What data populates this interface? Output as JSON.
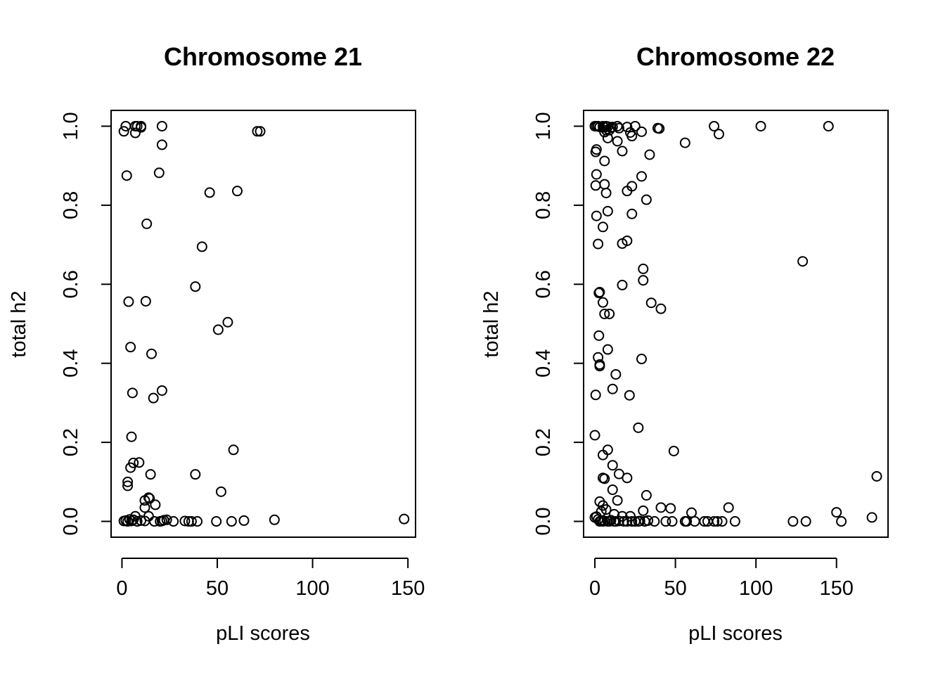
{
  "chart_data": [
    {
      "type": "scatter",
      "title": "Chromosome 21",
      "xlabel": "pLI scores",
      "ylabel": "total h2",
      "xticks": [
        0,
        50,
        100,
        150
      ],
      "xtick_labels": [
        "0",
        "50",
        "100",
        "150"
      ],
      "yticks": [
        0.0,
        0.2,
        0.4,
        0.6,
        0.8,
        1.0
      ],
      "ytick_labels": [
        "0.0",
        "0.2",
        "0.4",
        "0.6",
        "0.8",
        "1.0"
      ],
      "xlim": [
        -5.7,
        154
      ],
      "ylim": [
        -0.04,
        1.04
      ],
      "grid": false,
      "points": [
        [
          1,
          0.987
        ],
        [
          2,
          1.0
        ],
        [
          7,
          1.0
        ],
        [
          8,
          1.0
        ],
        [
          10,
          0.997
        ],
        [
          10,
          1.0
        ],
        [
          7,
          0.983
        ],
        [
          21,
          1.0
        ],
        [
          71,
          0.987
        ],
        [
          72.5,
          0.987
        ],
        [
          21,
          0.953
        ],
        [
          2.5,
          0.875
        ],
        [
          19.5,
          0.882
        ],
        [
          46,
          0.832
        ],
        [
          60.5,
          0.836
        ],
        [
          13,
          0.753
        ],
        [
          42,
          0.695
        ],
        [
          38.5,
          0.594
        ],
        [
          3.5,
          0.556
        ],
        [
          12.5,
          0.557
        ],
        [
          55.5,
          0.504
        ],
        [
          50.5,
          0.485
        ],
        [
          4.5,
          0.441
        ],
        [
          15.5,
          0.424
        ],
        [
          5.5,
          0.325
        ],
        [
          21,
          0.331
        ],
        [
          16.5,
          0.312
        ],
        [
          5,
          0.214
        ],
        [
          58.5,
          0.181
        ],
        [
          6,
          0.148
        ],
        [
          9,
          0.149
        ],
        [
          4.5,
          0.136
        ],
        [
          15,
          0.119
        ],
        [
          38.5,
          0.119
        ],
        [
          3,
          0.1
        ],
        [
          3,
          0.09
        ],
        [
          52,
          0.075
        ],
        [
          12,
          0.053
        ],
        [
          14,
          0.06
        ],
        [
          14.5,
          0.058
        ],
        [
          12,
          0.035
        ],
        [
          17.5,
          0.042
        ],
        [
          7,
          0.013
        ],
        [
          14,
          0.013
        ],
        [
          1,
          0.001
        ],
        [
          2,
          0.002
        ],
        [
          3,
          0.0
        ],
        [
          4,
          0.005
        ],
        [
          5,
          0.001
        ],
        [
          6,
          0.004
        ],
        [
          8,
          0.0
        ],
        [
          10,
          0.002
        ],
        [
          12,
          0.001
        ],
        [
          17,
          0.0
        ],
        [
          20,
          0.0
        ],
        [
          21,
          0.001
        ],
        [
          22,
          0.003
        ],
        [
          23.5,
          0.004
        ],
        [
          27,
          0.0
        ],
        [
          33,
          0.001
        ],
        [
          35,
          0.0
        ],
        [
          36.5,
          0.0
        ],
        [
          39.5,
          0.0
        ],
        [
          49.5,
          0.0
        ],
        [
          57.5,
          0.0
        ],
        [
          64,
          0.002
        ],
        [
          80,
          0.004
        ],
        [
          148,
          0.006
        ]
      ]
    },
    {
      "type": "scatter",
      "title": "Chromosome 22",
      "xlabel": "pLI scores",
      "ylabel": "total h2",
      "xticks": [
        0,
        50,
        100,
        150
      ],
      "xtick_labels": [
        "0",
        "50",
        "100",
        "150"
      ],
      "yticks": [
        0.0,
        0.2,
        0.4,
        0.6,
        0.8,
        1.0
      ],
      "ytick_labels": [
        "0.0",
        "0.2",
        "0.4",
        "0.6",
        "0.8",
        "1.0"
      ],
      "xlim": [
        -7,
        182
      ],
      "ylim": [
        -0.04,
        1.04
      ],
      "grid": false,
      "points": [
        [
          0,
          1.0
        ],
        [
          1,
          1.0
        ],
        [
          2,
          1.0
        ],
        [
          3,
          0.998
        ],
        [
          5,
          1.0
        ],
        [
          6,
          0.997
        ],
        [
          7,
          1.0
        ],
        [
          8,
          0.999
        ],
        [
          7,
          0.99
        ],
        [
          6,
          0.985
        ],
        [
          9,
          0.99
        ],
        [
          10,
          0.996
        ],
        [
          11,
          0.998
        ],
        [
          14,
          1.0
        ],
        [
          15,
          0.995
        ],
        [
          20,
          0.998
        ],
        [
          22,
          0.984
        ],
        [
          23,
          0.975
        ],
        [
          25,
          1.0
        ],
        [
          29,
          0.986
        ],
        [
          39,
          0.995
        ],
        [
          40,
          0.994
        ],
        [
          74,
          1.0
        ],
        [
          77,
          0.98
        ],
        [
          103,
          1.0
        ],
        [
          145,
          1.0
        ],
        [
          8,
          0.97
        ],
        [
          14,
          0.962
        ],
        [
          56,
          0.958
        ],
        [
          0.5,
          0.935
        ],
        [
          1,
          0.941
        ],
        [
          17,
          0.937
        ],
        [
          34,
          0.928
        ],
        [
          6,
          0.912
        ],
        [
          1,
          0.878
        ],
        [
          29,
          0.873
        ],
        [
          0.5,
          0.85
        ],
        [
          6,
          0.853
        ],
        [
          23,
          0.848
        ],
        [
          7,
          0.831
        ],
        [
          20,
          0.836
        ],
        [
          32,
          0.814
        ],
        [
          8,
          0.785
        ],
        [
          1,
          0.773
        ],
        [
          23,
          0.778
        ],
        [
          5,
          0.745
        ],
        [
          2,
          0.702
        ],
        [
          17,
          0.703
        ],
        [
          20,
          0.71
        ],
        [
          129,
          0.658
        ],
        [
          30,
          0.639
        ],
        [
          30,
          0.61
        ],
        [
          17,
          0.598
        ],
        [
          3,
          0.58
        ],
        [
          2.5,
          0.578
        ],
        [
          35,
          0.553
        ],
        [
          5,
          0.554
        ],
        [
          41,
          0.538
        ],
        [
          6,
          0.525
        ],
        [
          9,
          0.525
        ],
        [
          2.5,
          0.47
        ],
        [
          8,
          0.435
        ],
        [
          2,
          0.415
        ],
        [
          29,
          0.411
        ],
        [
          3,
          0.393
        ],
        [
          3,
          0.397
        ],
        [
          13,
          0.372
        ],
        [
          11,
          0.335
        ],
        [
          0.5,
          0.32
        ],
        [
          21.5,
          0.319
        ],
        [
          27,
          0.237
        ],
        [
          0,
          0.218
        ],
        [
          8,
          0.181
        ],
        [
          49,
          0.178
        ],
        [
          5,
          0.168
        ],
        [
          11,
          0.142
        ],
        [
          15,
          0.12
        ],
        [
          5,
          0.11
        ],
        [
          6,
          0.108
        ],
        [
          20,
          0.11
        ],
        [
          175,
          0.114
        ],
        [
          11,
          0.08
        ],
        [
          32,
          0.066
        ],
        [
          3,
          0.05
        ],
        [
          14,
          0.053
        ],
        [
          5,
          0.04
        ],
        [
          7,
          0.03
        ],
        [
          41,
          0.035
        ],
        [
          47,
          0.033
        ],
        [
          83,
          0.035
        ],
        [
          30,
          0.027
        ],
        [
          4,
          0.025
        ],
        [
          60,
          0.022
        ],
        [
          150,
          0.023
        ],
        [
          12,
          0.018
        ],
        [
          17,
          0.013
        ],
        [
          22,
          0.013
        ],
        [
          172,
          0.01
        ],
        [
          0,
          0.01
        ],
        [
          1,
          0.012
        ],
        [
          2,
          0.005
        ],
        [
          3,
          0.0
        ],
        [
          4,
          0.002
        ],
        [
          5,
          0.0
        ],
        [
          6,
          0.001
        ],
        [
          8,
          0.0
        ],
        [
          9,
          0.0
        ],
        [
          10,
          0.003
        ],
        [
          12,
          0.0
        ],
        [
          13,
          0.0
        ],
        [
          15,
          0.001
        ],
        [
          18,
          0.0
        ],
        [
          20,
          0.0
        ],
        [
          23,
          0.0
        ],
        [
          25,
          0.0
        ],
        [
          27,
          0.0
        ],
        [
          28,
          0.001
        ],
        [
          31,
          0.0
        ],
        [
          33,
          0.002
        ],
        [
          37,
          0.0
        ],
        [
          44,
          0.0
        ],
        [
          48,
          0.0
        ],
        [
          56,
          0.0
        ],
        [
          57,
          0.0
        ],
        [
          62,
          0.0
        ],
        [
          68,
          0.0
        ],
        [
          70,
          0.0
        ],
        [
          74,
          0.0
        ],
        [
          76,
          0.0
        ],
        [
          79,
          0.0
        ],
        [
          87,
          0.0
        ],
        [
          123,
          0.0
        ],
        [
          131,
          0.0
        ],
        [
          153,
          0.0
        ]
      ]
    }
  ]
}
